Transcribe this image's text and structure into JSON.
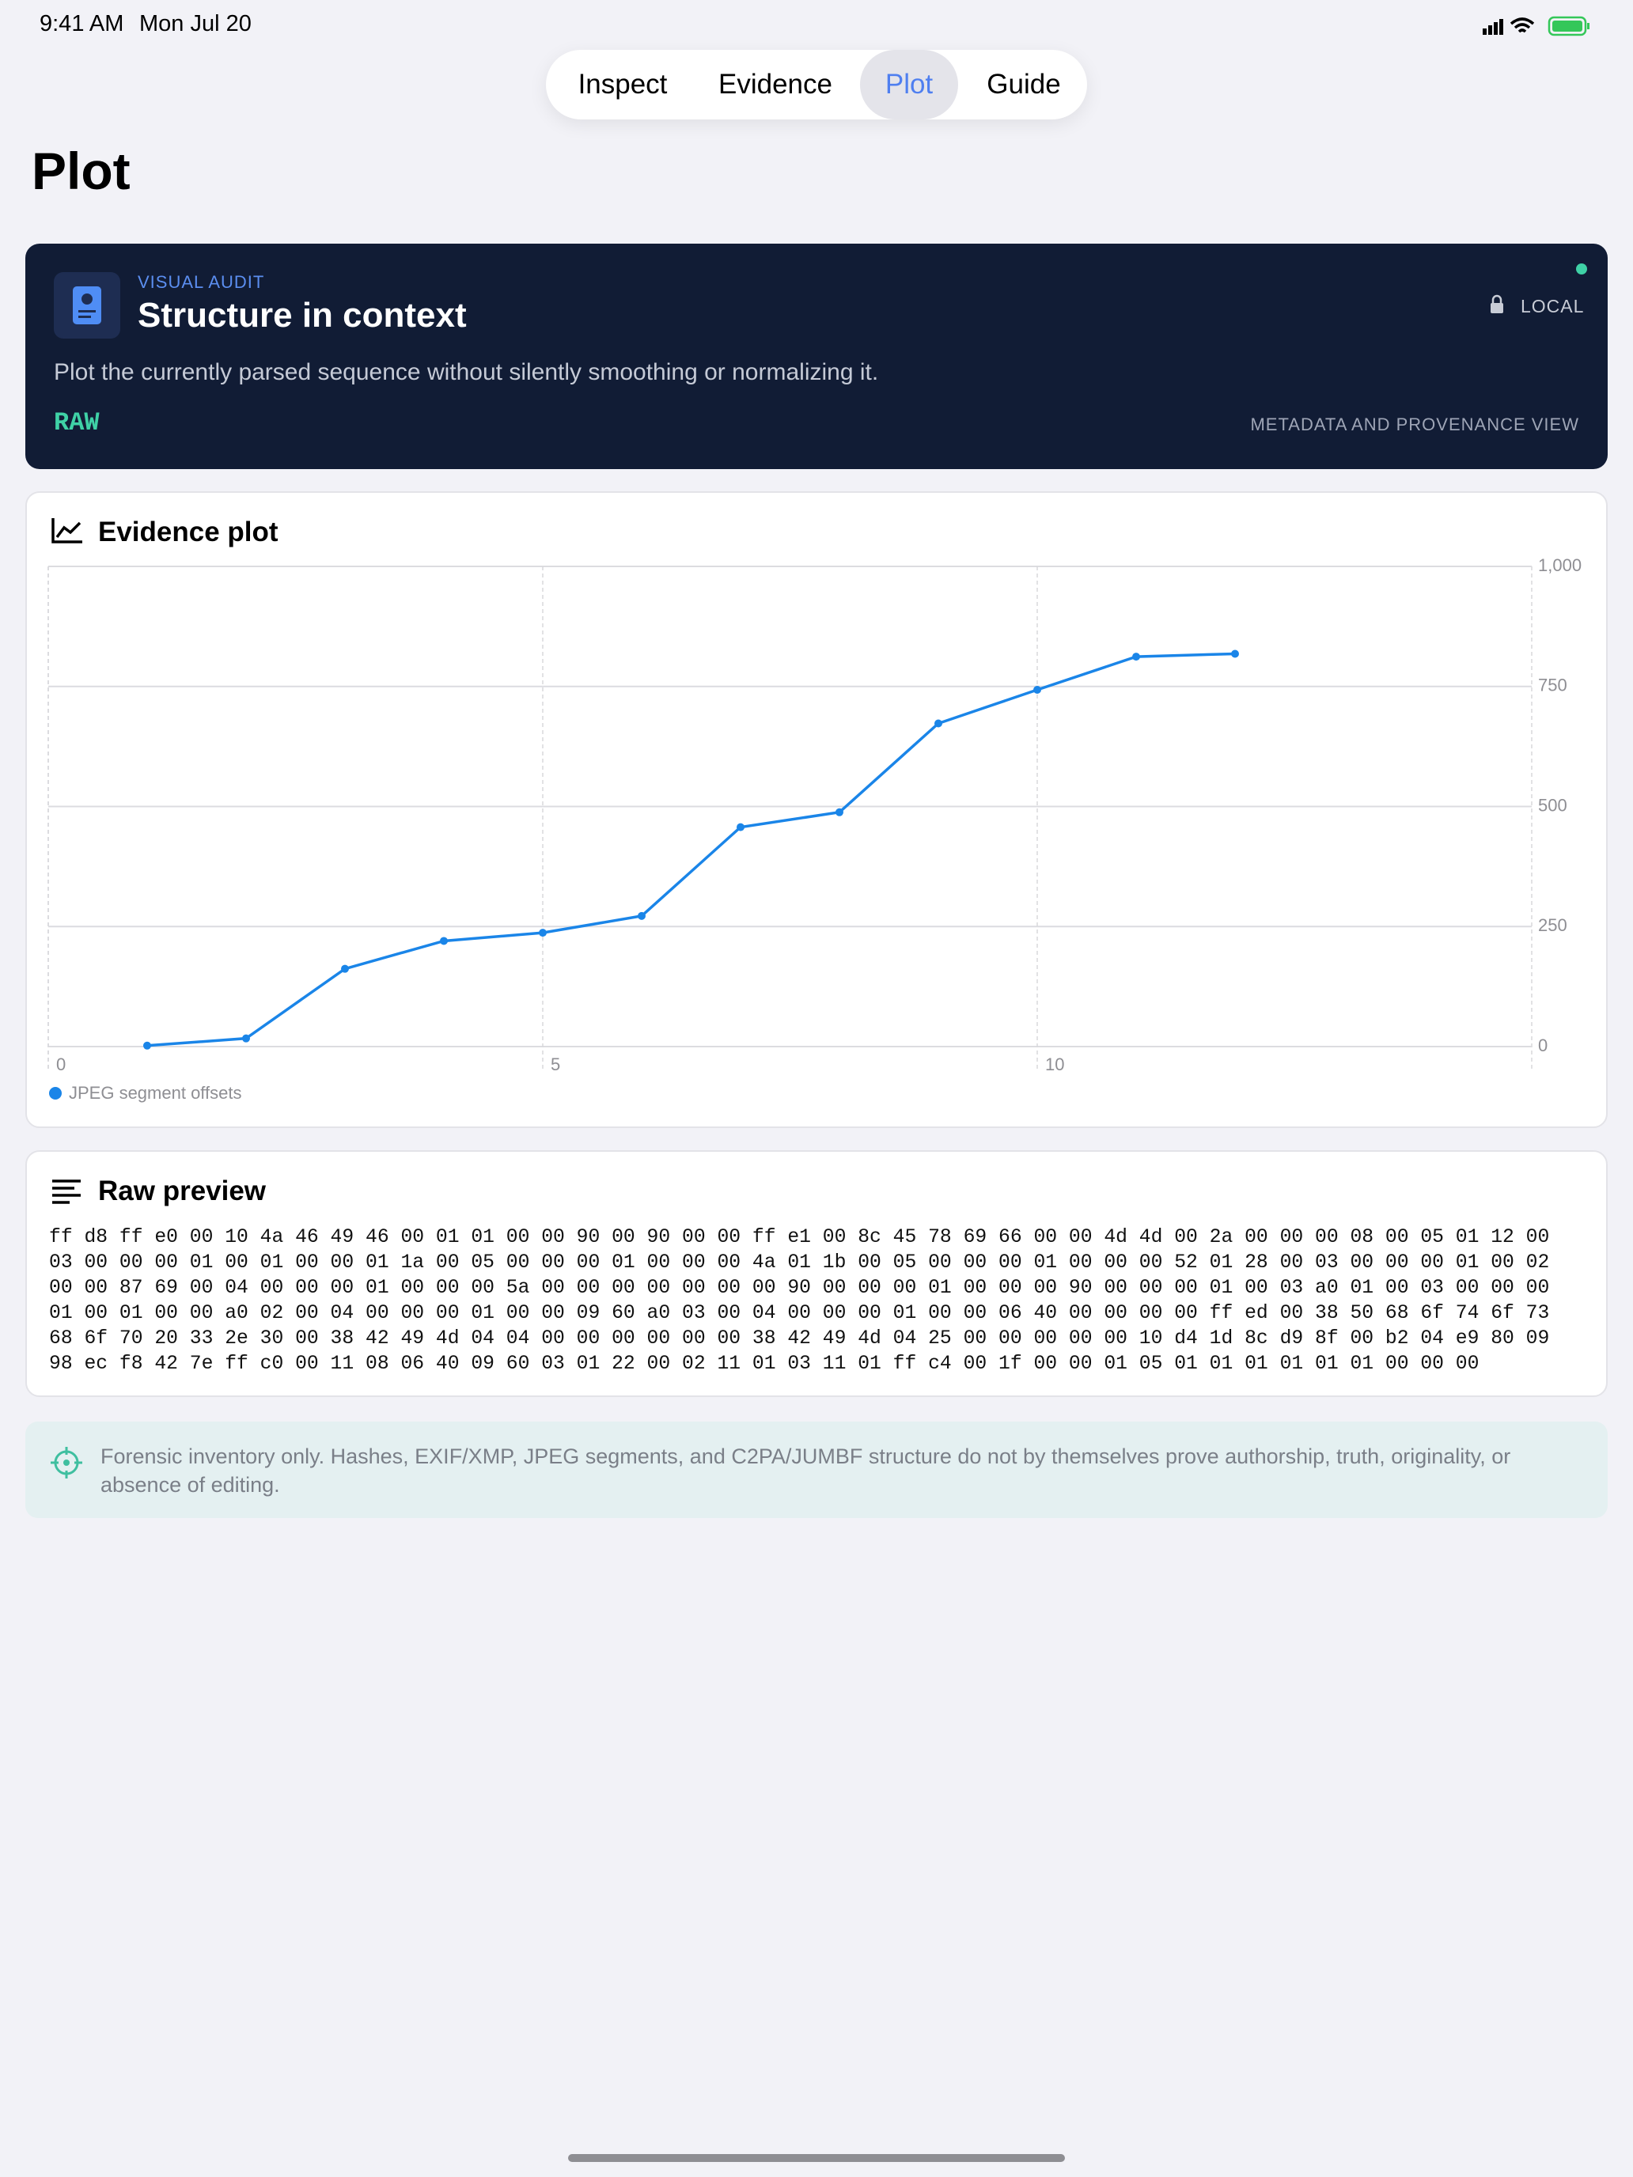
{
  "status_bar": {
    "time": "9:41 AM",
    "date": "Mon Jul 20"
  },
  "tabs": [
    {
      "label": "Inspect",
      "selected": false
    },
    {
      "label": "Evidence",
      "selected": false
    },
    {
      "label": "Plot",
      "selected": true
    },
    {
      "label": "Guide",
      "selected": false
    }
  ],
  "page_title": "Plot",
  "banner": {
    "eyebrow": "VISUAL AUDIT",
    "title": "Structure in context",
    "badge": "LOCAL",
    "description": "Plot the currently parsed sequence without silently smoothing or normalizing it.",
    "mode": "RAW",
    "footer": "METADATA AND PROVENANCE VIEW"
  },
  "chart_data": {
    "type": "line",
    "title": "Evidence plot",
    "x": [
      1,
      2,
      3,
      4,
      5,
      6,
      7,
      8,
      9,
      10,
      11,
      12
    ],
    "series": [
      {
        "name": "JPEG segment offsets",
        "color": "#1a85e8",
        "values": [
          2,
          17,
          162,
          220,
          237,
          272,
          457,
          488,
          673,
          743,
          812,
          818
        ]
      }
    ],
    "xlim": [
      0,
      15
    ],
    "xticks": [
      0,
      5,
      10
    ],
    "ylim": [
      0,
      1000
    ],
    "yticks": [
      0,
      250,
      500,
      750,
      {
        "value": 1000,
        "label": "1,000"
      }
    ],
    "grid": true
  },
  "raw_preview": {
    "title": "Raw preview",
    "lines": [
      "ff d8 ff e0 00 10 4a 46 49 46 00 01 01 00 00 90 00 90 00 00 ff e1 00 8c 45 78 69 66 00 00 4d 4d 00 2a 00 00 00 08 00 05 01 12 00",
      "03 00 00 00 01 00 01 00 00 01 1a 00 05 00 00 00 01 00 00 00 4a 01 1b 00 05 00 00 00 01 00 00 00 52 01 28 00 03 00 00 00 01 00 02",
      "00 00 87 69 00 04 00 00 00 01 00 00 00 5a 00 00 00 00 00 00 00 90 00 00 00 01 00 00 00 90 00 00 00 01 00 03 a0 01 00 03 00 00 00",
      "01 00 01 00 00 a0 02 00 04 00 00 00 01 00 00 09 60 a0 03 00 04 00 00 00 01 00 00 06 40 00 00 00 00 ff ed 00 38 50 68 6f 74 6f 73",
      "68 6f 70 20 33 2e 30 00 38 42 49 4d 04 04 00 00 00 00 00 00 38 42 49 4d 04 25 00 00 00 00 00 10 d4 1d 8c d9 8f 00 b2 04 e9 80 09",
      "98 ec f8 42 7e ff c0 00 11 08 06 40 09 60 03 01 22 00 02 11 01 03 11 01 ff c4 00 1f 00 00 01 05 01 01 01 01 01 01 00 00 00"
    ]
  },
  "note": "Forensic inventory only. Hashes, EXIF/XMP, JPEG segments, and C2PA/JUMBF structure do not by themselves prove authorship, truth, originality, or absence of editing."
}
